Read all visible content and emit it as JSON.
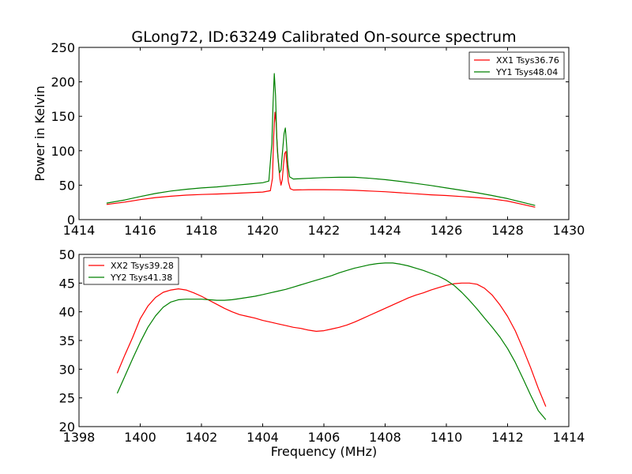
{
  "title": "GLong72, ID:63249 Calibrated On-source spectrum",
  "chart_data": [
    {
      "type": "line",
      "title": "GLong72, ID:63249 Calibrated On-source spectrum",
      "xlabel": "",
      "ylabel": "Power in Kelvin",
      "xlim": [
        1414,
        1430
      ],
      "ylim": [
        0,
        250
      ],
      "xticks": [
        "1414",
        "1416",
        "1418",
        "1420",
        "1422",
        "1424",
        "1426",
        "1428",
        "1430"
      ],
      "yticks": [
        "0",
        "50",
        "100",
        "150",
        "200",
        "250"
      ],
      "legend_position": "top-right",
      "grid": false,
      "series": [
        {
          "name": "XX1 Tsys36.76",
          "color": "#ff0000",
          "points": [
            [
              1414.9,
              22
            ],
            [
              1415.5,
              25.5
            ],
            [
              1416,
              29
            ],
            [
              1416.5,
              32
            ],
            [
              1417,
              34
            ],
            [
              1417.5,
              35.5
            ],
            [
              1418,
              36.5
            ],
            [
              1418.5,
              37.2
            ],
            [
              1419,
              38
            ],
            [
              1419.5,
              39
            ],
            [
              1420,
              40
            ],
            [
              1420.25,
              42
            ],
            [
              1420.32,
              60
            ],
            [
              1420.36,
              120
            ],
            [
              1420.4,
              156
            ],
            [
              1420.44,
              140
            ],
            [
              1420.48,
              100
            ],
            [
              1420.52,
              80
            ],
            [
              1420.56,
              60
            ],
            [
              1420.6,
              50
            ],
            [
              1420.64,
              58
            ],
            [
              1420.68,
              80
            ],
            [
              1420.72,
              96
            ],
            [
              1420.76,
              99
            ],
            [
              1420.8,
              75
            ],
            [
              1420.84,
              55
            ],
            [
              1420.9,
              45
            ],
            [
              1421,
              43
            ],
            [
              1421.5,
              43.5
            ],
            [
              1422,
              43.5
            ],
            [
              1422.5,
              43.2
            ],
            [
              1423,
              42.5
            ],
            [
              1423.5,
              41.5
            ],
            [
              1424,
              40.5
            ],
            [
              1424.5,
              39
            ],
            [
              1425,
              37.5
            ],
            [
              1425.5,
              36
            ],
            [
              1426,
              35
            ],
            [
              1426.5,
              33.5
            ],
            [
              1427,
              32
            ],
            [
              1427.5,
              30
            ],
            [
              1428,
              27
            ],
            [
              1428.5,
              22
            ],
            [
              1428.9,
              18
            ]
          ]
        },
        {
          "name": "YY1 Tsys48.04",
          "color": "#008000",
          "points": [
            [
              1414.9,
              24
            ],
            [
              1415.5,
              28.5
            ],
            [
              1416,
              33.5
            ],
            [
              1416.5,
              38
            ],
            [
              1417,
              41.5
            ],
            [
              1417.5,
              44
            ],
            [
              1418,
              46
            ],
            [
              1418.5,
              47.5
            ],
            [
              1419,
              49.5
            ],
            [
              1419.5,
              51.5
            ],
            [
              1420,
              53.5
            ],
            [
              1420.2,
              56
            ],
            [
              1420.3,
              110
            ],
            [
              1420.34,
              170
            ],
            [
              1420.38,
              212
            ],
            [
              1420.42,
              180
            ],
            [
              1420.46,
              120
            ],
            [
              1420.5,
              90
            ],
            [
              1420.55,
              68
            ],
            [
              1420.6,
              72
            ],
            [
              1420.65,
              100
            ],
            [
              1420.7,
              125
            ],
            [
              1420.74,
              133
            ],
            [
              1420.78,
              110
            ],
            [
              1420.82,
              80
            ],
            [
              1420.88,
              62
            ],
            [
              1421,
              59
            ],
            [
              1421.5,
              60
            ],
            [
              1422,
              61
            ],
            [
              1422.5,
              61.5
            ],
            [
              1423,
              61.5
            ],
            [
              1423.5,
              60
            ],
            [
              1424,
              58
            ],
            [
              1424.5,
              55.5
            ],
            [
              1425,
              52.5
            ],
            [
              1425.5,
              49.5
            ],
            [
              1426,
              46
            ],
            [
              1426.5,
              42.5
            ],
            [
              1427,
              39
            ],
            [
              1427.5,
              35
            ],
            [
              1428,
              30.5
            ],
            [
              1428.5,
              25
            ],
            [
              1428.9,
              20.5
            ]
          ]
        }
      ]
    },
    {
      "type": "line",
      "title": "",
      "xlabel": "Frequency (MHz)",
      "ylabel": "",
      "xlim": [
        1398,
        1414
      ],
      "ylim": [
        20,
        50
      ],
      "xticks": [
        "1398",
        "1400",
        "1402",
        "1404",
        "1406",
        "1408",
        "1410",
        "1412",
        "1414"
      ],
      "yticks": [
        "20",
        "25",
        "30",
        "35",
        "40",
        "45",
        "50"
      ],
      "legend_position": "top-left",
      "grid": false,
      "series": [
        {
          "name": "XX2 Tsys39.28",
          "color": "#ff0000",
          "points": [
            [
              1399.25,
              29.3
            ],
            [
              1399.5,
              32.5
            ],
            [
              1399.75,
              35.5
            ],
            [
              1400,
              38.8
            ],
            [
              1400.25,
              41
            ],
            [
              1400.5,
              42.5
            ],
            [
              1400.75,
              43.4
            ],
            [
              1401,
              43.8
            ],
            [
              1401.25,
              44
            ],
            [
              1401.5,
              43.8
            ],
            [
              1401.75,
              43.3
            ],
            [
              1402,
              42.7
            ],
            [
              1402.25,
              42
            ],
            [
              1402.5,
              41.3
            ],
            [
              1402.75,
              40.6
            ],
            [
              1403,
              40
            ],
            [
              1403.25,
              39.5
            ],
            [
              1403.5,
              39.2
            ],
            [
              1403.75,
              38.9
            ],
            [
              1404,
              38.5
            ],
            [
              1404.25,
              38.2
            ],
            [
              1404.5,
              37.9
            ],
            [
              1404.75,
              37.6
            ],
            [
              1405,
              37.3
            ],
            [
              1405.25,
              37.1
            ],
            [
              1405.5,
              36.8
            ],
            [
              1405.75,
              36.6
            ],
            [
              1406,
              36.7
            ],
            [
              1406.25,
              37
            ],
            [
              1406.5,
              37.3
            ],
            [
              1406.75,
              37.7
            ],
            [
              1407,
              38.2
            ],
            [
              1407.25,
              38.8
            ],
            [
              1407.5,
              39.4
            ],
            [
              1407.75,
              40
            ],
            [
              1408,
              40.6
            ],
            [
              1408.25,
              41.2
            ],
            [
              1408.5,
              41.8
            ],
            [
              1408.75,
              42.4
            ],
            [
              1409,
              42.9
            ],
            [
              1409.25,
              43.3
            ],
            [
              1409.5,
              43.8
            ],
            [
              1409.75,
              44.2
            ],
            [
              1410,
              44.6
            ],
            [
              1410.25,
              44.9
            ],
            [
              1410.5,
              45
            ],
            [
              1410.75,
              45
            ],
            [
              1411,
              44.8
            ],
            [
              1411.25,
              44.1
            ],
            [
              1411.5,
              42.9
            ],
            [
              1411.75,
              41.2
            ],
            [
              1412,
              39.2
            ],
            [
              1412.25,
              36.7
            ],
            [
              1412.5,
              33.6
            ],
            [
              1412.75,
              30.3
            ],
            [
              1413,
              26.7
            ],
            [
              1413.25,
              23.5
            ]
          ]
        },
        {
          "name": "YY2 Tsys41.38",
          "color": "#008000",
          "points": [
            [
              1399.25,
              25.8
            ],
            [
              1399.5,
              28.8
            ],
            [
              1399.75,
              31.8
            ],
            [
              1400,
              34.7
            ],
            [
              1400.25,
              37.3
            ],
            [
              1400.5,
              39.3
            ],
            [
              1400.75,
              40.8
            ],
            [
              1401,
              41.7
            ],
            [
              1401.25,
              42.1
            ],
            [
              1401.5,
              42.2
            ],
            [
              1401.75,
              42.2
            ],
            [
              1402,
              42.2
            ],
            [
              1402.25,
              42.1
            ],
            [
              1402.5,
              42
            ],
            [
              1402.75,
              42
            ],
            [
              1403,
              42.1
            ],
            [
              1403.25,
              42.3
            ],
            [
              1403.5,
              42.5
            ],
            [
              1403.75,
              42.7
            ],
            [
              1404,
              43
            ],
            [
              1404.25,
              43.3
            ],
            [
              1404.5,
              43.6
            ],
            [
              1404.75,
              43.9
            ],
            [
              1405,
              44.3
            ],
            [
              1405.25,
              44.7
            ],
            [
              1405.5,
              45.1
            ],
            [
              1405.75,
              45.5
            ],
            [
              1406,
              45.9
            ],
            [
              1406.25,
              46.3
            ],
            [
              1406.5,
              46.8
            ],
            [
              1406.75,
              47.2
            ],
            [
              1407,
              47.6
            ],
            [
              1407.25,
              47.9
            ],
            [
              1407.5,
              48.2
            ],
            [
              1407.75,
              48.4
            ],
            [
              1408,
              48.5
            ],
            [
              1408.25,
              48.5
            ],
            [
              1408.5,
              48.3
            ],
            [
              1408.75,
              48
            ],
            [
              1409,
              47.6
            ],
            [
              1409.25,
              47.2
            ],
            [
              1409.5,
              46.7
            ],
            [
              1409.75,
              46.2
            ],
            [
              1410,
              45.5
            ],
            [
              1410.25,
              44.6
            ],
            [
              1410.5,
              43.4
            ],
            [
              1410.75,
              42
            ],
            [
              1411,
              40.5
            ],
            [
              1411.25,
              38.9
            ],
            [
              1411.5,
              37.3
            ],
            [
              1411.75,
              35.6
            ],
            [
              1412,
              33.6
            ],
            [
              1412.25,
              31.2
            ],
            [
              1412.5,
              28.4
            ],
            [
              1412.75,
              25.5
            ],
            [
              1413,
              22.8
            ],
            [
              1413.25,
              21.2
            ]
          ]
        }
      ]
    }
  ]
}
